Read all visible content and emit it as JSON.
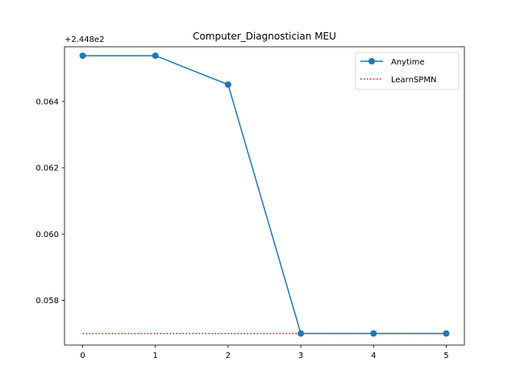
{
  "chart_data": {
    "type": "line",
    "title": "Computer_Diagnostician MEU",
    "offset_label": "+2.448e2",
    "xlabel": "",
    "ylabel": "",
    "x": [
      0,
      1,
      2,
      3,
      4,
      5
    ],
    "xticks": [
      "0",
      "1",
      "2",
      "3",
      "4",
      "5"
    ],
    "yticks": [
      0.058,
      0.06,
      0.062,
      0.064
    ],
    "ytick_labels": [
      "0.058",
      "0.060",
      "0.062",
      "0.064"
    ],
    "xlim": [
      -0.25,
      5.25
    ],
    "ylim": [
      0.05665,
      0.06565
    ],
    "series": [
      {
        "name": "Anytime",
        "style": "solid-marker",
        "color": "#1f77b4",
        "values": [
          0.06538,
          0.06538,
          0.06451,
          0.057,
          0.057,
          0.057
        ]
      },
      {
        "name": "LearnSPMN",
        "style": "dotted",
        "color": "#ff0000",
        "values": [
          0.057,
          0.057,
          0.057,
          0.057,
          0.057,
          0.057
        ]
      }
    ],
    "legend_position": "upper right",
    "grid": false
  }
}
